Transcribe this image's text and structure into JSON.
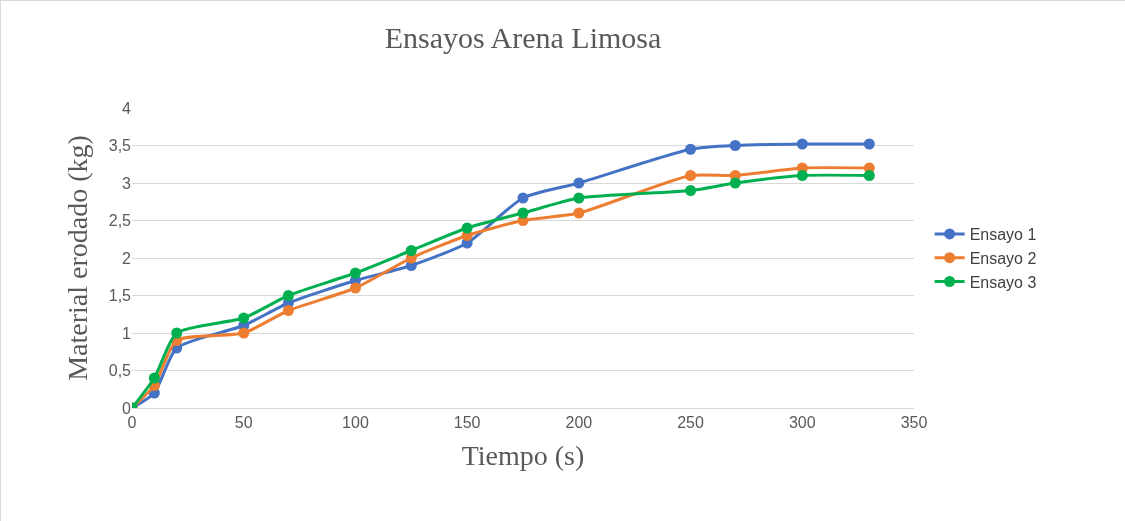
{
  "chart_data": {
    "type": "line",
    "title": "Ensayos Arena Limosa",
    "xlabel": "Tiempo (s)",
    "ylabel": "Material erodado (kg)",
    "x": [
      0,
      10,
      20,
      50,
      70,
      100,
      125,
      150,
      175,
      200,
      250,
      270,
      300,
      330
    ],
    "series": [
      {
        "name": "Ensayo 1",
        "color": "#4472c4",
        "values": [
          0,
          0.2,
          0.8,
          1.1,
          1.4,
          1.7,
          1.9,
          2.2,
          2.8,
          3.0,
          3.45,
          3.5,
          3.52,
          3.52
        ]
      },
      {
        "name": "Ensayo 2",
        "color": "#ed7d31",
        "values": [
          0,
          0.3,
          0.9,
          1.0,
          1.3,
          1.6,
          2.0,
          2.3,
          2.5,
          2.6,
          3.1,
          3.1,
          3.2,
          3.2
        ]
      },
      {
        "name": "Ensayo 3",
        "color": "#00b050",
        "values": [
          0,
          0.4,
          1.0,
          1.2,
          1.5,
          1.8,
          2.1,
          2.4,
          2.6,
          2.8,
          2.9,
          3.0,
          3.1,
          3.1
        ]
      }
    ],
    "xlim": [
      0,
      350
    ],
    "xticks": [
      0,
      50,
      100,
      150,
      200,
      250,
      300,
      350
    ],
    "ylim": [
      0,
      4
    ],
    "yticks": [
      0,
      {
        "value": 0.5,
        "label": "0,5"
      },
      1,
      {
        "value": 1.5,
        "label": "1,5"
      },
      2,
      {
        "value": 2.5,
        "label": "2,5"
      },
      3,
      {
        "value": 3.5,
        "label": "3,5"
      },
      4
    ],
    "grid": "y",
    "legend": "right",
    "marker": "circle",
    "line_style": "solid"
  }
}
